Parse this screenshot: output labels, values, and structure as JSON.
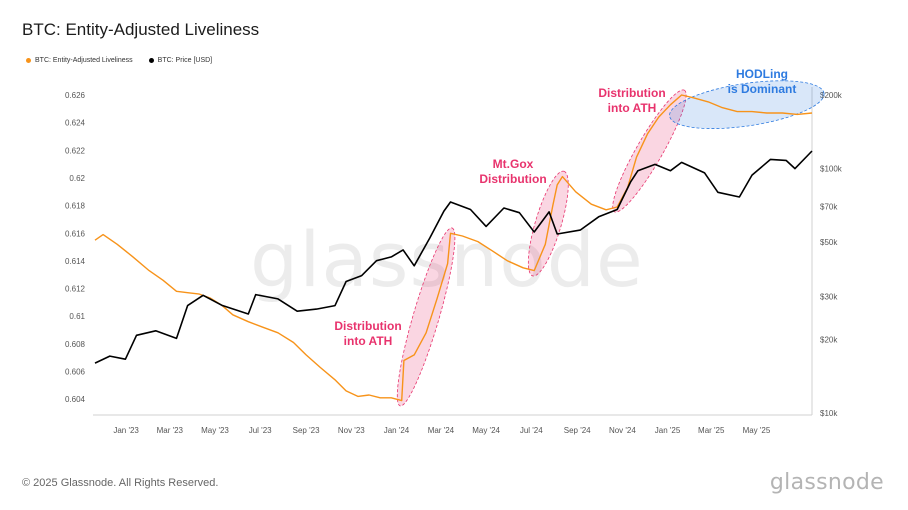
{
  "header": {
    "title": "BTC: Entity-Adjusted Liveliness"
  },
  "legend": {
    "items": [
      {
        "label": "BTC: Entity-Adjusted Liveliness",
        "color": "#f7931a"
      },
      {
        "label": "BTC: Price [USD]",
        "color": "#000000"
      }
    ]
  },
  "watermark": "glassnode",
  "footer": {
    "copyright": "© 2025 Glassnode. All Rights Reserved.",
    "brand": "glassnode"
  },
  "colors": {
    "liveliness": "#f7931a",
    "price": "#000000",
    "distribution_highlight": "#e8336d",
    "hodl_highlight": "#2e7be0"
  },
  "chart_data": {
    "type": "line",
    "x_tick_labels": [
      "Jan '23",
      "Mar '23",
      "May '23",
      "Jul '23",
      "Sep '23",
      "Nov '23",
      "Jan '24",
      "Mar '24",
      "May '24",
      "Jul '24",
      "Sep '24",
      "Nov '24",
      "Jan '25",
      "Mar '25",
      "May '25"
    ],
    "y_left": {
      "ticks": [
        0.604,
        0.606,
        0.608,
        0.61,
        0.612,
        0.614,
        0.616,
        0.618,
        0.62,
        0.622,
        0.624,
        0.626
      ],
      "tick_labels": [
        "0.604",
        "0.606",
        "0.608",
        "0.61",
        "0.612",
        "0.614",
        "0.616",
        "0.618",
        "0.62",
        "0.622",
        "0.624",
        "0.626"
      ],
      "range": [
        0.603,
        0.626
      ]
    },
    "y_right": {
      "scale": "log",
      "ticks": [
        10000,
        20000,
        30000,
        50000,
        70000,
        100000,
        200000
      ],
      "tick_labels": [
        "$10k",
        "$20k",
        "$30k",
        "$50k",
        "$70k",
        "$100k",
        "$200k"
      ],
      "range": [
        10000,
        200000
      ]
    },
    "x_range": [
      "2022-11-20",
      "2025-07-15"
    ],
    "grid": false,
    "legend_placement": "top-left",
    "series": [
      {
        "name": "BTC: Entity-Adjusted Liveliness",
        "axis": "left",
        "points": [
          [
            "2022-11-20",
            0.6155
          ],
          [
            "2022-12-01",
            0.6159
          ],
          [
            "2022-12-20",
            0.6152
          ],
          [
            "2023-01-10",
            0.6143
          ],
          [
            "2023-02-01",
            0.6133
          ],
          [
            "2023-02-20",
            0.6126
          ],
          [
            "2023-03-10",
            0.6118
          ],
          [
            "2023-03-25",
            0.6117
          ],
          [
            "2023-04-10",
            0.6116
          ],
          [
            "2023-04-25",
            0.6113
          ],
          [
            "2023-05-10",
            0.6108
          ],
          [
            "2023-05-25",
            0.6101
          ],
          [
            "2023-06-15",
            0.6096
          ],
          [
            "2023-07-05",
            0.6092
          ],
          [
            "2023-07-25",
            0.6088
          ],
          [
            "2023-08-15",
            0.6081
          ],
          [
            "2023-09-01",
            0.6072
          ],
          [
            "2023-09-20",
            0.6063
          ],
          [
            "2023-10-10",
            0.6054
          ],
          [
            "2023-10-25",
            0.6046
          ],
          [
            "2023-11-10",
            0.6042
          ],
          [
            "2023-11-25",
            0.6043
          ],
          [
            "2023-12-10",
            0.6041
          ],
          [
            "2023-12-25",
            0.6041
          ],
          [
            "2024-01-08",
            0.6039
          ],
          [
            "2024-01-11",
            0.6068
          ],
          [
            "2024-01-25",
            0.6072
          ],
          [
            "2024-02-10",
            0.6088
          ],
          [
            "2024-02-25",
            0.6113
          ],
          [
            "2024-03-10",
            0.6138
          ],
          [
            "2024-03-14",
            0.616
          ],
          [
            "2024-03-30",
            0.6158
          ],
          [
            "2024-04-20",
            0.6154
          ],
          [
            "2024-05-10",
            0.6147
          ],
          [
            "2024-05-30",
            0.614
          ],
          [
            "2024-06-20",
            0.6135
          ],
          [
            "2024-07-05",
            0.6133
          ],
          [
            "2024-07-20",
            0.6152
          ],
          [
            "2024-07-30",
            0.618
          ],
          [
            "2024-08-05",
            0.6195
          ],
          [
            "2024-08-12",
            0.6201
          ],
          [
            "2024-08-30",
            0.619
          ],
          [
            "2024-09-20",
            0.6181
          ],
          [
            "2024-10-10",
            0.6177
          ],
          [
            "2024-10-25",
            0.6179
          ],
          [
            "2024-11-08",
            0.6193
          ],
          [
            "2024-11-20",
            0.6215
          ],
          [
            "2024-12-05",
            0.6232
          ],
          [
            "2024-12-20",
            0.6244
          ],
          [
            "2025-01-05",
            0.6253
          ],
          [
            "2025-01-20",
            0.626
          ],
          [
            "2025-02-05",
            0.6258
          ],
          [
            "2025-02-25",
            0.6255
          ],
          [
            "2025-03-15",
            0.6251
          ],
          [
            "2025-04-05",
            0.6248
          ],
          [
            "2025-04-25",
            0.6248
          ],
          [
            "2025-05-15",
            0.6247
          ],
          [
            "2025-06-05",
            0.6247
          ],
          [
            "2025-06-25",
            0.6246
          ],
          [
            "2025-07-15",
            0.6247
          ]
        ]
      },
      {
        "name": "BTC: Price [USD]",
        "axis": "right",
        "points": [
          [
            "2022-11-20",
            16000
          ],
          [
            "2022-12-10",
            17100
          ],
          [
            "2022-12-31",
            16600
          ],
          [
            "2023-01-15",
            20800
          ],
          [
            "2023-02-10",
            21700
          ],
          [
            "2023-03-10",
            20200
          ],
          [
            "2023-03-25",
            27500
          ],
          [
            "2023-04-15",
            30300
          ],
          [
            "2023-05-10",
            27600
          ],
          [
            "2023-06-15",
            25400
          ],
          [
            "2023-06-25",
            30500
          ],
          [
            "2023-07-25",
            29300
          ],
          [
            "2023-08-20",
            26100
          ],
          [
            "2023-09-15",
            26600
          ],
          [
            "2023-10-10",
            27500
          ],
          [
            "2023-10-25",
            34500
          ],
          [
            "2023-11-15",
            36500
          ],
          [
            "2023-12-05",
            42000
          ],
          [
            "2023-12-25",
            43500
          ],
          [
            "2024-01-10",
            46500
          ],
          [
            "2024-01-25",
            40000
          ],
          [
            "2024-02-15",
            52000
          ],
          [
            "2024-03-05",
            67000
          ],
          [
            "2024-03-14",
            73000
          ],
          [
            "2024-04-10",
            68000
          ],
          [
            "2024-05-01",
            58000
          ],
          [
            "2024-05-25",
            69000
          ],
          [
            "2024-06-15",
            66000
          ],
          [
            "2024-07-05",
            55000
          ],
          [
            "2024-07-25",
            66500
          ],
          [
            "2024-08-05",
            54000
          ],
          [
            "2024-09-05",
            56000
          ],
          [
            "2024-09-30",
            63500
          ],
          [
            "2024-10-25",
            68000
          ],
          [
            "2024-11-12",
            88000
          ],
          [
            "2024-11-22",
            98000
          ],
          [
            "2024-12-15",
            104000
          ],
          [
            "2025-01-05",
            98000
          ],
          [
            "2025-01-20",
            106000
          ],
          [
            "2025-02-20",
            96000
          ],
          [
            "2025-03-10",
            80000
          ],
          [
            "2025-04-08",
            76500
          ],
          [
            "2025-04-25",
            94000
          ],
          [
            "2025-05-20",
            109000
          ],
          [
            "2025-06-10",
            108000
          ],
          [
            "2025-06-22",
            100000
          ],
          [
            "2025-07-15",
            118000
          ]
        ]
      }
    ],
    "annotations": [
      {
        "text": [
          "Distribution",
          "into ATH"
        ],
        "color": "#e8336d",
        "ellipse": {
          "from": "2024-01-08",
          "to": "2024-03-14",
          "y_from": 0.6039,
          "y_to": 0.616,
          "pad": 0.0005
        }
      },
      {
        "text": [
          "Mt.Gox",
          "Distribution"
        ],
        "color": "#e8336d",
        "ellipse": {
          "from": "2024-07-05",
          "to": "2024-08-12",
          "y_from": 0.6133,
          "y_to": 0.6201,
          "pad": 0.0005
        }
      },
      {
        "text": [
          "Distribution",
          "into ATH"
        ],
        "color": "#e8336d",
        "ellipse": {
          "from": "2024-10-25",
          "to": "2025-01-20",
          "y_from": 0.6179,
          "y_to": 0.626,
          "pad": 0.0005
        }
      },
      {
        "text": [
          "HODLing",
          "is Dominant"
        ],
        "color": "#2e7be0",
        "ellipse": {
          "from": "2025-01-20",
          "to": "2025-07-15",
          "y_from": 0.6246,
          "y_to": 0.626,
          "pad": 0.0011
        }
      }
    ]
  }
}
